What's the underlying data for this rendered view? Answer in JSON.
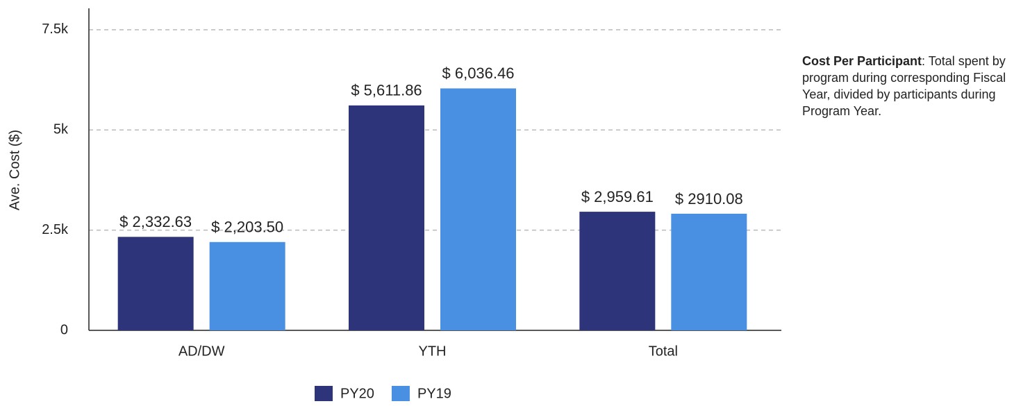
{
  "chart_data": {
    "type": "bar",
    "y_label": "Ave. Cost ($)",
    "categories": [
      "AD/DW",
      "YTH",
      "Total"
    ],
    "series": [
      {
        "name": "PY20",
        "color": "#2d347a",
        "values": [
          2332.63,
          5611.86,
          2959.61
        ],
        "value_labels": [
          "$ 2,332.63",
          "$ 5,611.86",
          "$ 2,959.61"
        ]
      },
      {
        "name": "PY19",
        "color": "#4a90e2",
        "values": [
          2203.5,
          6036.46,
          2910.08
        ],
        "value_labels": [
          "$ 2,203.50",
          "$ 6,036.46",
          "$ 2910.08"
        ]
      }
    ],
    "ylim": [
      0,
      8000
    ],
    "yticks": [
      0,
      {
        "value": 2500,
        "label": "2.5k"
      },
      {
        "value": 5000,
        "label": "5k"
      },
      {
        "value": 7500,
        "label": "7.5k"
      }
    ],
    "grid": true,
    "legend": "bottom",
    "annotation": {
      "title": "Cost Per Participant",
      "text": ": Total spent by program during corresponding Fiscal Year, divided by participants during Program Year."
    }
  }
}
